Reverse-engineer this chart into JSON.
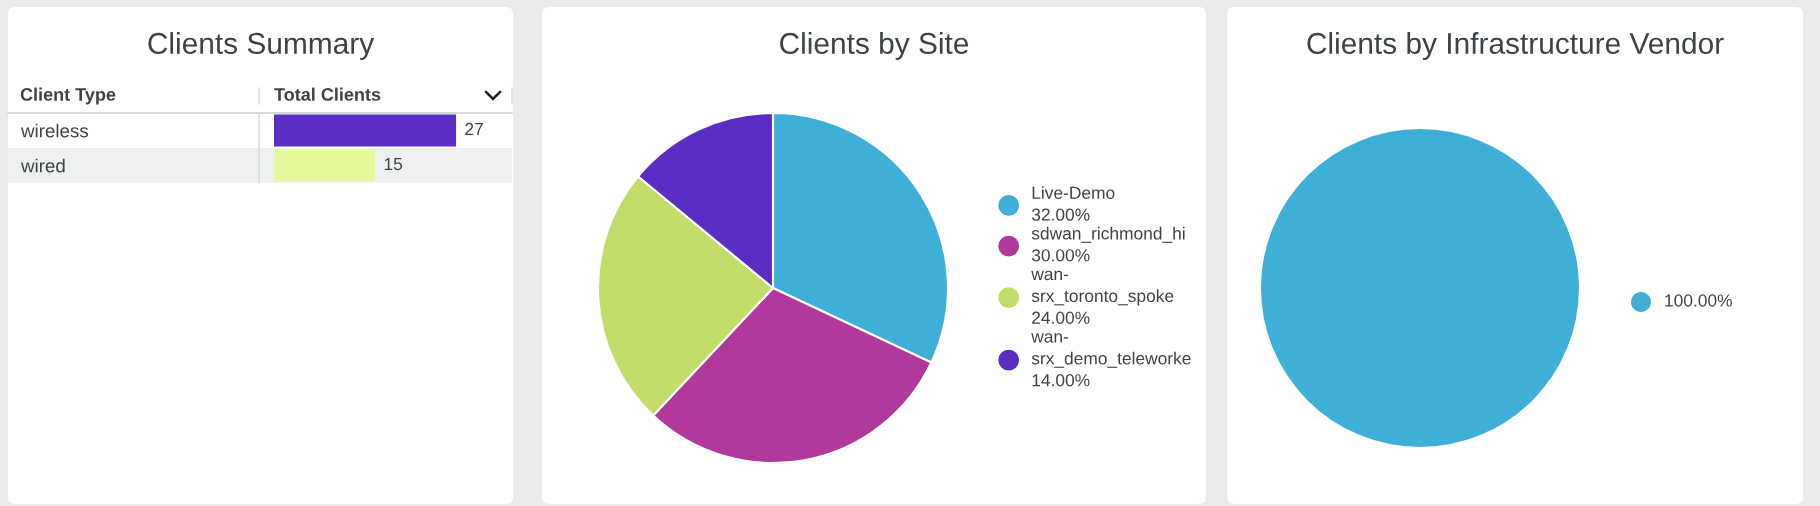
{
  "chart_data": [
    {
      "type": "bar",
      "title": "Clients Summary",
      "orientation": "horizontal",
      "ylabel": "Client Type",
      "xlabel": "Total Clients",
      "categories": [
        "wireless",
        "wired"
      ],
      "values": [
        27,
        15
      ],
      "colors": [
        "#5b2fc3",
        "#e3f99a"
      ],
      "data_labels": true,
      "tick_labels": "y"
    },
    {
      "type": "pie",
      "title": "Clients by Site",
      "categories": [
        "Live-Demo",
        "sdwan_richmond_hi",
        "wan-srx_toronto_spoke",
        "wan-srx_demo_teleworke"
      ],
      "values": [
        32,
        30,
        24,
        14
      ],
      "colors": [
        "#3eafd6",
        "#b0399b",
        "#c3dd6a",
        "#5b2ec3"
      ],
      "value_labels": [
        "32.00%",
        "30.00%",
        "24.00%",
        "14.00%"
      ],
      "legend": "right"
    },
    {
      "type": "pie",
      "title": "Clients by Infrastructure Vendor",
      "categories": [
        null
      ],
      "values": [
        100
      ],
      "colors": [
        "#3eafd6"
      ],
      "value_labels": [
        "100.00%"
      ]
    }
  ]
}
